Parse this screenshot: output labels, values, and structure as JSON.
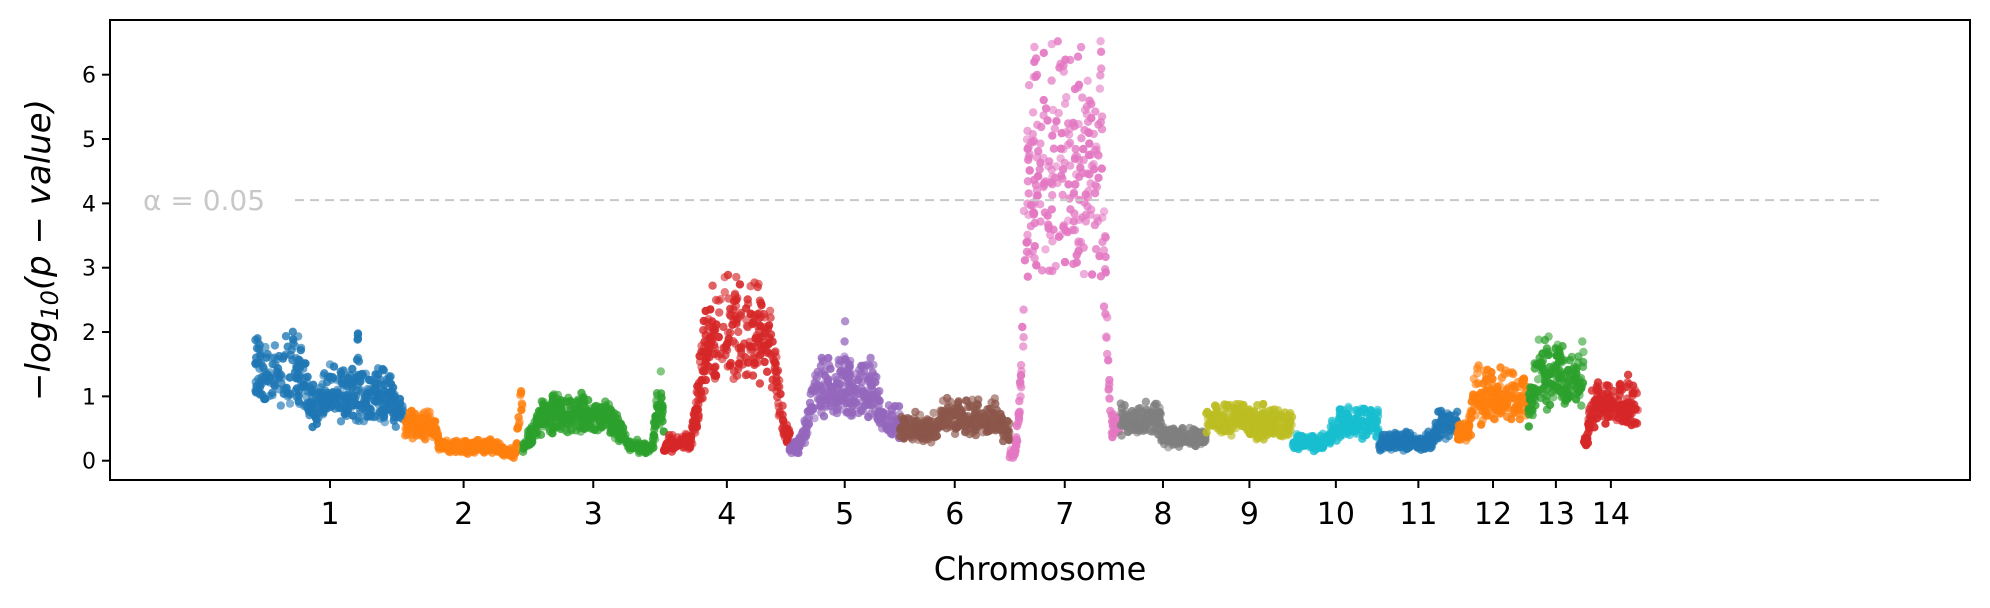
{
  "chart_data": {
    "type": "scatter",
    "xlabel": "Chromosome",
    "ylabel_parts": {
      "pre": "−log",
      "sub": "10",
      "post": "(p − value)"
    },
    "ylim": [
      -0.3,
      6.85
    ],
    "yticks": [
      "0",
      "1",
      "2",
      "3",
      "4",
      "5",
      "6"
    ],
    "threshold": {
      "label": "α = 0.05",
      "value": 4.05
    },
    "grid": false,
    "legend": "none",
    "chromosomes": [
      {
        "label": "1",
        "color": "#1f77b4",
        "start": 0.0,
        "end": 190.0,
        "peaks": [
          [
            20,
            70,
            1.9,
            16
          ],
          [
            80,
            55,
            1.1,
            12
          ],
          [
            100,
            10,
            0.4,
            6
          ],
          [
            130,
            75,
            1.4,
            14
          ],
          [
            130,
            0,
            2.8,
            1
          ],
          [
            175,
            30,
            1.0,
            12
          ]
        ]
      },
      {
        "label": "2",
        "color": "#ff7f0e",
        "start": 190.0,
        "end": 340.0,
        "peaks": [
          [
            20,
            25,
            0.8,
            10
          ],
          [
            60,
            85,
            0.3,
            30
          ],
          [
            150,
            0,
            1.3,
            5
          ]
        ]
      },
      {
        "label": "3",
        "color": "#2ca02c",
        "start": 340.0,
        "end": 520.0,
        "peaks": [
          [
            25,
            25,
            0.5,
            10
          ],
          [
            70,
            75,
            1.0,
            18
          ],
          [
            120,
            55,
            0.3,
            25
          ],
          [
            175,
            0,
            1.3,
            6
          ]
        ]
      },
      {
        "label": "4",
        "color": "#d62728",
        "start": 520.0,
        "end": 680.0,
        "peaks": [
          [
            20,
            20,
            0.4,
            10
          ],
          [
            95,
            75,
            2.7,
            12
          ],
          [
            150,
            25,
            0.6,
            10
          ]
        ]
      },
      {
        "label": "5",
        "color": "#9467bd",
        "start": 680.0,
        "end": 820.0,
        "peaks": [
          [
            25,
            30,
            0.3,
            15
          ],
          [
            70,
            65,
            1.6,
            14
          ],
          [
            70,
            0,
            2.3,
            1
          ],
          [
            125,
            40,
            0.8,
            15
          ]
        ]
      },
      {
        "label": "6",
        "color": "#8c564b",
        "start": 820.0,
        "end": 960.0,
        "peaks": [
          [
            30,
            40,
            0.7,
            15
          ],
          [
            90,
            65,
            0.9,
            12
          ],
          [
            130,
            20,
            0.6,
            10
          ]
        ]
      },
      {
        "label": "7",
        "color": "#e377c2",
        "start": 960.0,
        "end": 1100.0,
        "peaks": [
          [
            20,
            20,
            0.2,
            12
          ],
          [
            50,
            25,
            2.2,
            8
          ],
          [
            70,
            90,
            6.3,
            7
          ],
          [
            115,
            45,
            0.8,
            14
          ]
        ]
      },
      {
        "label": "8",
        "color": "#7f7f7f",
        "start": 1100.0,
        "end": 1210.0,
        "peaks": [
          [
            25,
            40,
            0.9,
            12
          ],
          [
            75,
            75,
            0.5,
            15
          ]
        ]
      },
      {
        "label": "9",
        "color": "#bcbd22",
        "start": 1210.0,
        "end": 1320.0,
        "peaks": [
          [
            25,
            45,
            0.9,
            12
          ],
          [
            75,
            75,
            0.8,
            12
          ]
        ]
      },
      {
        "label": "10",
        "color": "#17becf",
        "start": 1320.0,
        "end": 1430.0,
        "peaks": [
          [
            30,
            50,
            0.4,
            15
          ],
          [
            85,
            55,
            0.8,
            12
          ]
        ]
      },
      {
        "label": "11",
        "color": "#1f77b4",
        "start": 1430.0,
        "end": 1530.0,
        "peaks": [
          [
            40,
            65,
            0.4,
            20
          ],
          [
            90,
            25,
            0.8,
            8
          ]
        ]
      },
      {
        "label": "12",
        "color": "#ff7f0e",
        "start": 1530.0,
        "end": 1620.0,
        "peaks": [
          [
            20,
            30,
            0.6,
            8
          ],
          [
            55,
            60,
            1.4,
            10
          ]
        ]
      },
      {
        "label": "13",
        "color": "#2ca02c",
        "start": 1620.0,
        "end": 1690.0,
        "peaks": [
          [
            10,
            30,
            1.1,
            6
          ],
          [
            40,
            60,
            1.8,
            6
          ],
          [
            65,
            25,
            0.4,
            8
          ]
        ]
      },
      {
        "label": "14",
        "color": "#d62728",
        "start": 1690.0,
        "end": 1760.0,
        "peaks": [
          [
            20,
            30,
            0.4,
            8
          ],
          [
            45,
            60,
            1.2,
            8
          ]
        ]
      }
    ]
  }
}
